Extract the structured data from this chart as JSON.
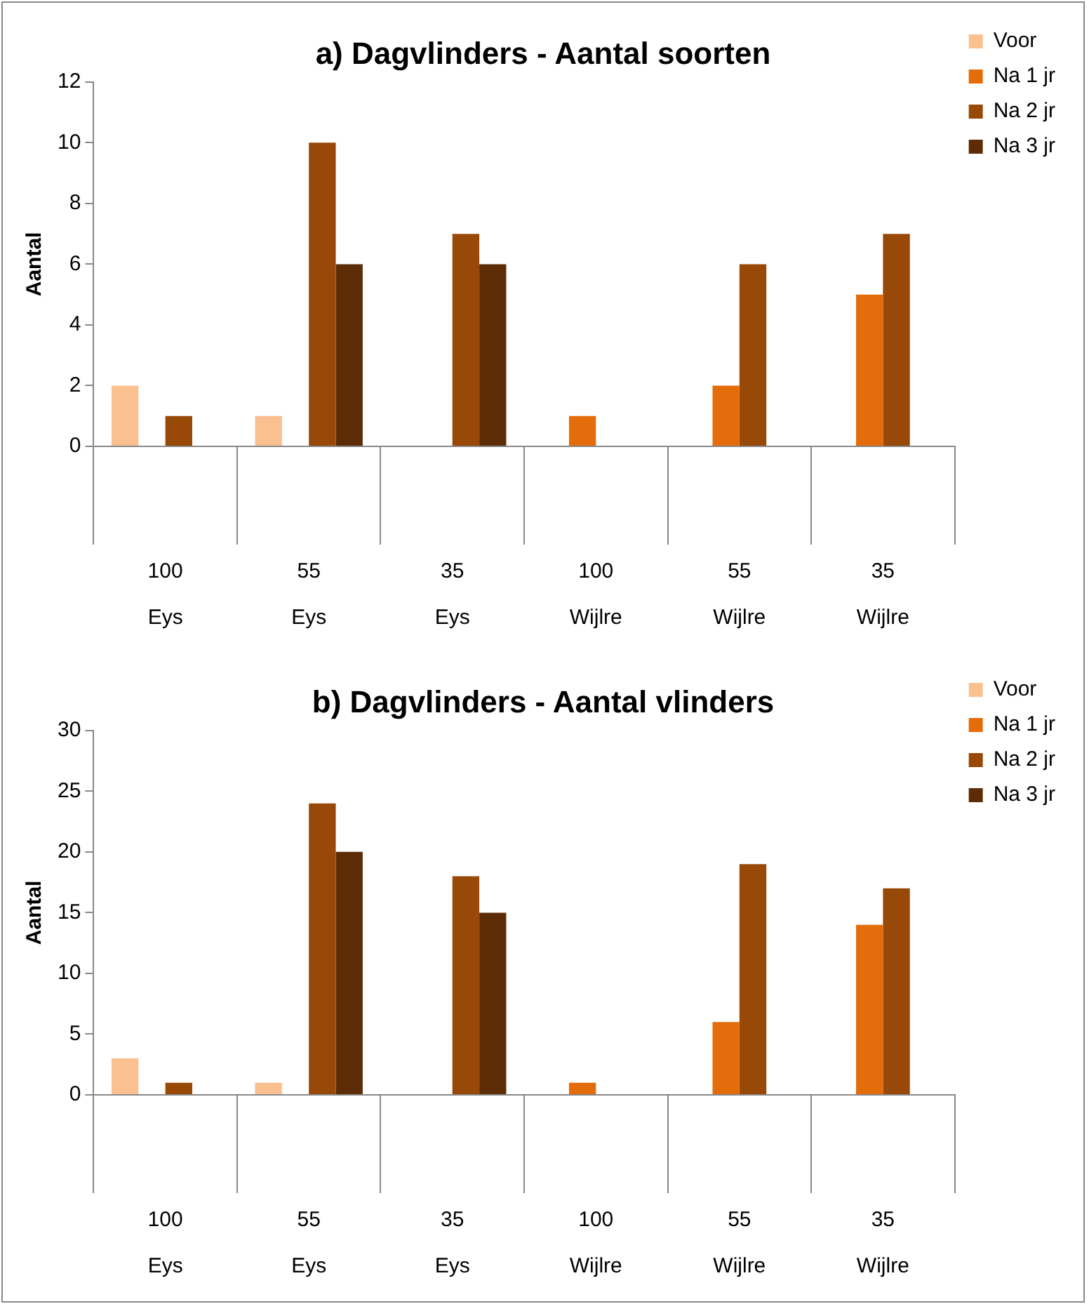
{
  "chart_data": [
    {
      "type": "bar",
      "title": "a) Dagvlinders - Aantal soorten",
      "ylabel": "Aantal",
      "categories": [
        "100\nEys",
        "55\nEys",
        "35\nEys",
        "100\nWijlre",
        "55\nWijlre",
        "35\nWijlre"
      ],
      "ylim": [
        0,
        12
      ],
      "yticks": [
        0,
        2,
        4,
        6,
        8,
        10,
        12
      ],
      "grid": false,
      "legend": "top right",
      "series": [
        {
          "name": "Voor",
          "color": "#fac090",
          "values": [
            2,
            1,
            0,
            0,
            0,
            0
          ]
        },
        {
          "name": "Na 1 jr",
          "color": "#e46c0a",
          "values": [
            0,
            0,
            0,
            1,
            2,
            5
          ]
        },
        {
          "name": "Na 2 jr",
          "color": "#984807",
          "values": [
            1,
            10,
            7,
            0,
            6,
            7
          ]
        },
        {
          "name": "Na 3 jr",
          "color": "#5c2c06",
          "values": [
            0,
            6,
            6,
            0,
            0,
            0
          ]
        }
      ]
    },
    {
      "type": "bar",
      "title": "b) Dagvlinders - Aantal vlinders",
      "ylabel": "Aantal",
      "categories": [
        "100\nEys",
        "55\nEys",
        "35\nEys",
        "100\nWijlre",
        "55\nWijlre",
        "35\nWijlre"
      ],
      "ylim": [
        0,
        30
      ],
      "yticks": [
        0,
        5,
        10,
        15,
        20,
        25,
        30
      ],
      "grid": false,
      "legend": "top right",
      "series": [
        {
          "name": "Voor",
          "color": "#fac090",
          "values": [
            3,
            1,
            0,
            0,
            0,
            0
          ]
        },
        {
          "name": "Na 1 jr",
          "color": "#e46c0a",
          "values": [
            0,
            0,
            0,
            1,
            6,
            14
          ]
        },
        {
          "name": "Na 2 jr",
          "color": "#984807",
          "values": [
            1,
            24,
            18,
            0,
            19,
            17
          ]
        },
        {
          "name": "Na 3 jr",
          "color": "#5c2c06",
          "values": [
            0,
            20,
            15,
            0,
            0,
            0
          ]
        }
      ]
    }
  ]
}
